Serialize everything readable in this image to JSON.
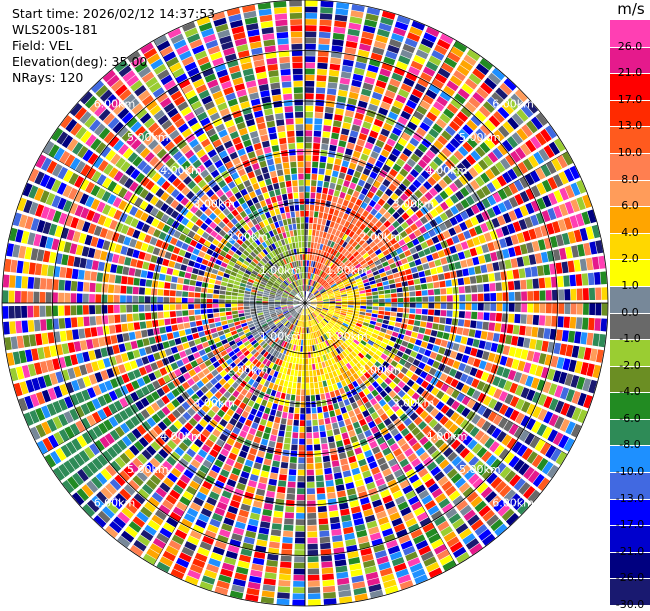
{
  "header": {
    "start_time": "Start time: 2026/02/12 14:37:53",
    "site": "WLS200s-181",
    "field": "Field: VEL",
    "elevation": "Elevation(deg): 35.00",
    "nrays": "NRays: 120"
  },
  "chart_data": {
    "type": "heatmap",
    "projection": "polar-ppi",
    "nrays": 120,
    "range_max_km": 6.0,
    "range_rings_km": [
      1,
      2,
      3,
      4,
      5,
      6
    ],
    "ring_labels": [
      "1.00km",
      "2.00km",
      "3.00km",
      "4.00km",
      "5.00km",
      "6.00km"
    ],
    "colorbar": {
      "unit": "m/s",
      "ticks": [
        "26.0",
        "21.0",
        "17.0",
        "13.0",
        "10.0",
        "8.0",
        "6.0",
        "4.0",
        "2.0",
        "1.0",
        "0.0",
        "-1.0",
        "-2.0",
        "-4.0",
        "-6.0",
        "-8.0",
        "-10.0",
        "-13.0",
        "-17.0",
        "-21.0",
        "-26.0",
        "-30.0"
      ],
      "colors": [
        "#ff3fb3",
        "#e51a8c",
        "#ff0000",
        "#ff2a00",
        "#ff5a1e",
        "#ff7f50",
        "#ff9c5a",
        "#ffa500",
        "#ffd700",
        "#ffff00",
        "#778899",
        "#696969",
        "#9acd32",
        "#6b8e23",
        "#228b22",
        "#2e8b57",
        "#1e90ff",
        "#4169e1",
        "#0000ff",
        "#0000cd",
        "#000080",
        "#191970"
      ]
    },
    "regions": [
      {
        "sector_deg": [
          5,
          60
        ],
        "range_km": [
          0.4,
          2.2
        ],
        "dominant": "orange (+6 to +10 m/s)"
      },
      {
        "sector_deg": [
          60,
          110
        ],
        "range_km": [
          0.3,
          1.2
        ],
        "dominant": "yellow (+2 to +4 m/s)"
      },
      {
        "sector_deg": [
          110,
          200
        ],
        "range_km": [
          0.2,
          1.8
        ],
        "dominant": "yellow (+1 to +4 m/s)"
      },
      {
        "sector_deg": [
          200,
          290
        ],
        "range_km": [
          0.2,
          1.2
        ],
        "dominant": "grey (0 to -1 m/s)"
      },
      {
        "sector_deg": [
          270,
          360
        ],
        "range_km": [
          0.2,
          1.6
        ],
        "dominant": "olive green (-1 to -4 m/s)"
      },
      {
        "sector_deg": [
          230,
          250
        ],
        "range_km": [
          3.5,
          6.0
        ],
        "dominant": "sea green / dodger blue (-6 to -10 m/s)"
      },
      {
        "sector_deg": [
          0,
          360
        ],
        "range_km": [
          2.0,
          6.0
        ],
        "dominant": "noise (all classes)"
      }
    ]
  }
}
